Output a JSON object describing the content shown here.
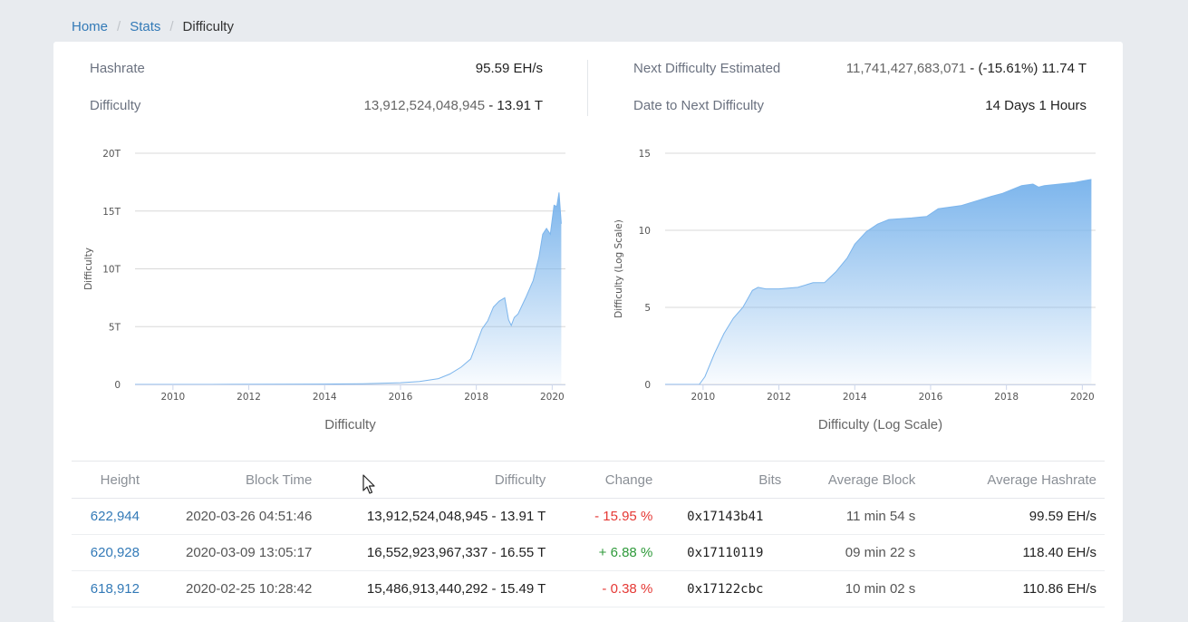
{
  "breadcrumb": {
    "home": "Home",
    "stats": "Stats",
    "current": "Difficulty",
    "sep": "/"
  },
  "stats": {
    "hashrate_label": "Hashrate",
    "hashrate_value": "95.59 EH/s",
    "difficulty_label": "Difficulty",
    "difficulty_raw": "13,912,524,048,945",
    "difficulty_dash": " - ",
    "difficulty_short": "13.91 T",
    "next_label": "Next Difficulty Estimated",
    "next_raw": "11,741,427,683,071",
    "next_dash": " - ",
    "next_short": "(-15.61%) 11.74 T",
    "date_label": "Date to Next Difficulty",
    "date_value": "14 Days 1 Hours"
  },
  "chart_data": [
    {
      "type": "area",
      "title": "Difficulty",
      "ylabel": "Difficulty",
      "xlabel": "",
      "x_ticks": [
        "2010",
        "2012",
        "2014",
        "2016",
        "2018",
        "2020"
      ],
      "y_ticks": [
        "0",
        "5T",
        "10T",
        "15T",
        "20T"
      ],
      "xlim": [
        2009.0,
        2020.35
      ],
      "ylim": [
        0,
        20
      ],
      "y_unit": "T",
      "grid": true,
      "color": "#7cb5ec",
      "series": [
        {
          "x": [
            2009.0,
            2011.0,
            2013.0,
            2014.0,
            2015.0,
            2016.0,
            2016.5,
            2017.0,
            2017.3,
            2017.6,
            2017.85,
            2018.0,
            2018.15,
            2018.3,
            2018.45,
            2018.6,
            2018.75,
            2018.85,
            2018.92,
            2019.0,
            2019.1,
            2019.3,
            2019.5,
            2019.65,
            2019.75,
            2019.85,
            2019.95,
            2020.05,
            2020.12,
            2020.18,
            2020.24
          ],
          "y": [
            0,
            0.001,
            0.02,
            0.03,
            0.06,
            0.15,
            0.25,
            0.5,
            0.9,
            1.5,
            2.2,
            3.5,
            4.8,
            5.5,
            6.7,
            7.2,
            7.5,
            5.6,
            5.1,
            5.8,
            6.1,
            7.5,
            9.0,
            11.0,
            13.0,
            13.5,
            13.0,
            15.5,
            15.4,
            16.6,
            13.9
          ]
        }
      ]
    },
    {
      "type": "area",
      "title": "Difficulty (Log Scale)",
      "ylabel": "Difficulty (Log Scale)",
      "xlabel": "",
      "x_ticks": [
        "2010",
        "2012",
        "2014",
        "2016",
        "2018",
        "2020"
      ],
      "y_ticks": [
        "0",
        "5",
        "10",
        "15"
      ],
      "xlim": [
        2009.0,
        2020.35
      ],
      "ylim": [
        0,
        15
      ],
      "grid": true,
      "color": "#7cb5ec",
      "series": [
        {
          "x": [
            2009.0,
            2009.9,
            2010.05,
            2010.3,
            2010.55,
            2010.8,
            2011.05,
            2011.3,
            2011.45,
            2011.65,
            2012.0,
            2012.5,
            2012.9,
            2013.2,
            2013.5,
            2013.8,
            2014.0,
            2014.3,
            2014.6,
            2014.9,
            2015.5,
            2015.9,
            2016.2,
            2016.8,
            2017.2,
            2017.6,
            2017.9,
            2018.1,
            2018.4,
            2018.7,
            2018.85,
            2019.0,
            2019.4,
            2019.8,
            2020.0,
            2020.24
          ],
          "y": [
            0,
            0,
            0.5,
            2.0,
            3.3,
            4.3,
            5.0,
            6.1,
            6.3,
            6.2,
            6.2,
            6.3,
            6.6,
            6.6,
            7.3,
            8.2,
            9.1,
            9.9,
            10.4,
            10.7,
            10.8,
            10.9,
            11.4,
            11.6,
            11.9,
            12.2,
            12.4,
            12.6,
            12.9,
            13.0,
            12.8,
            12.9,
            13.0,
            13.1,
            13.2,
            13.3
          ]
        }
      ]
    }
  ],
  "table": {
    "headers": [
      "Height",
      "Block Time",
      "Difficulty",
      "Change",
      "Bits",
      "Average Block",
      "Average Hashrate"
    ],
    "rows": [
      {
        "height": "622,944",
        "time": "2020-03-26 04:51:46",
        "difficulty": "13,912,524,048,945 - 13.91 T",
        "change": "- 15.95 %",
        "change_dir": "neg",
        "bits": "0x17143b41",
        "avg_block": "11 min 54 s",
        "avg_hash": "99.59 EH/s"
      },
      {
        "height": "620,928",
        "time": "2020-03-09 13:05:17",
        "difficulty": "16,552,923,967,337 - 16.55 T",
        "change": "+ 6.88 %",
        "change_dir": "pos",
        "bits": "0x17110119",
        "avg_block": "09 min 22 s",
        "avg_hash": "118.40 EH/s"
      },
      {
        "height": "618,912",
        "time": "2020-02-25 10:28:42",
        "difficulty": "15,486,913,440,292 - 15.49 T",
        "change": "- 0.38 %",
        "change_dir": "neg",
        "bits": "0x17122cbc",
        "avg_block": "10 min 02 s",
        "avg_hash": "110.86 EH/s"
      }
    ]
  }
}
